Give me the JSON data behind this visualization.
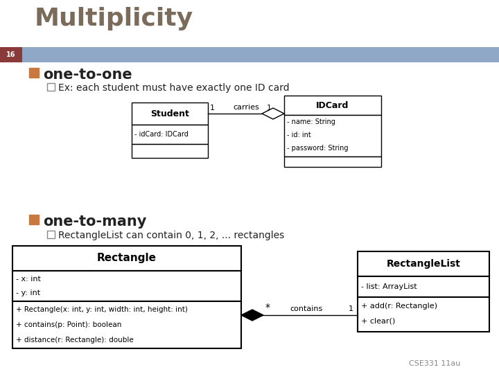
{
  "title": "Multiplicity",
  "slide_number": "16",
  "bg_color": "#ffffff",
  "title_color": "#7b6b5a",
  "header_bar_color": "#8fa8c8",
  "slide_num_bg": "#8B3A3A",
  "bullet1_color": "#c87941",
  "sub_bullet_border": "#888888",
  "footer": "CSE331 11au",
  "student_title": "Student",
  "student_attr": "- idCard: IDCard",
  "idcard_title": "IDCard",
  "idcard_attrs": [
    "- name: String",
    "- id: int",
    "- password: String"
  ],
  "carries_label": "carries",
  "rect_title": "Rectangle",
  "rect_attrs1": [
    "- x: int",
    "- y: int"
  ],
  "rect_attrs2": [
    "+ Rectangle(x: int, y: int, width: int, height: int)",
    "+ contains(p: Point): boolean",
    "+ distance(r: Rectangle): double"
  ],
  "rectlist_title": "RectangleList",
  "rectlist_attrs1": [
    "- list: ArrayList"
  ],
  "rectlist_attrs2": [
    "+ add(r: Rectangle)",
    "+ clear()"
  ],
  "contains_label": "contains",
  "bullet1_text": "one-to-one",
  "sub_bullet1_text": "Ex: each student must have exactly one ID card",
  "bullet2_text": "one-to-many",
  "sub_bullet2_text": "RectangleList can contain 0, 1, 2, ... rectangles"
}
